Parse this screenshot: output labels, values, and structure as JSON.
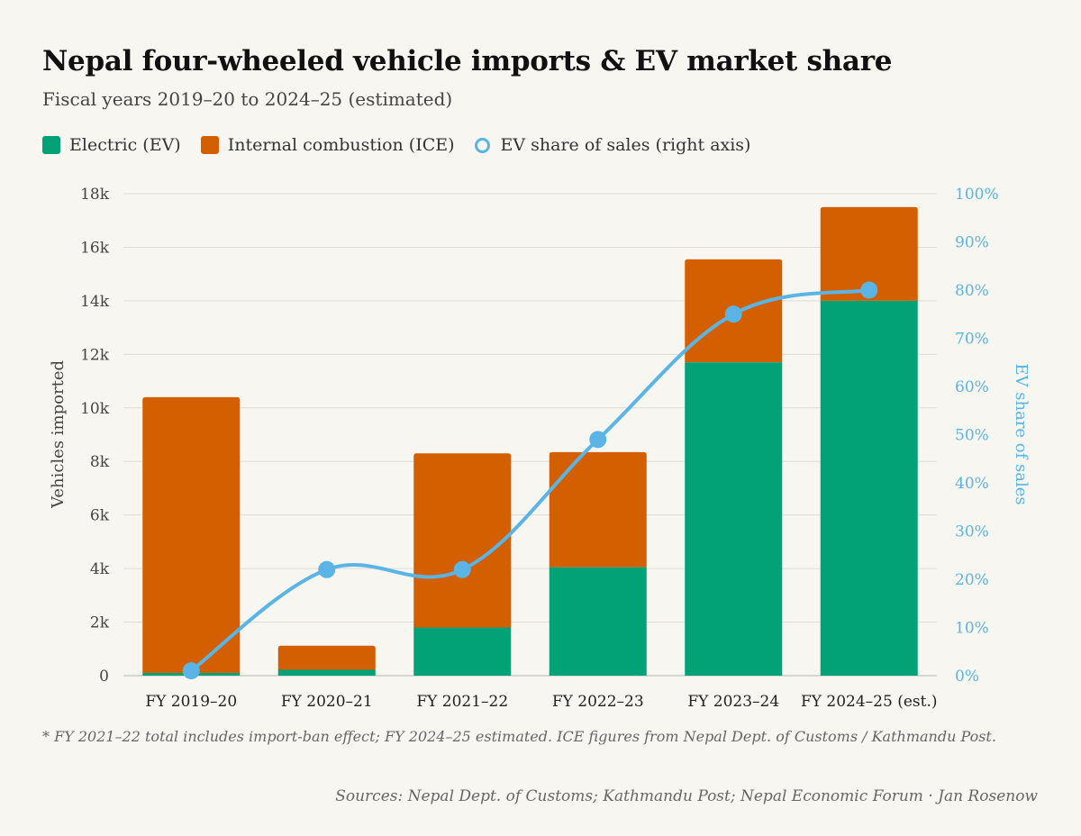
{
  "title": "Nepal four-wheeled vehicle imports & EV market share",
  "subtitle": "Fiscal years 2019–20 to 2024–25 (estimated)",
  "legend": {
    "ev": "Electric (EV)",
    "ice": "Internal combustion (ICE)",
    "share": "EV share of sales (right axis)"
  },
  "colors": {
    "ev": "#03a176",
    "ice": "#d45f00",
    "share": "#5ab4e5",
    "grid": "#dedcd5",
    "background": "#f7f6f1"
  },
  "note": "* FY 2021–22 total includes import-ban effect; FY 2024–25 estimated. ICE figures from Nepal Dept. of Customs / Kathmandu Post.",
  "source": "Sources: Nepal Dept. of Customs; Kathmandu Post; Nepal Economic Forum · Jan Rosenow",
  "chart_data": {
    "type": "bar",
    "stacked": true,
    "categories": [
      "FY 2019–20",
      "FY 2020–21",
      "FY 2021–22",
      "FY 2022–23",
      "FY 2023–24",
      "FY 2024–25 (est.)"
    ],
    "series": [
      {
        "name": "Electric (EV)",
        "axis": "left",
        "values": [
          100,
          220,
          1800,
          4050,
          11700,
          14000
        ]
      },
      {
        "name": "Internal combustion (ICE)",
        "axis": "left",
        "values": [
          10300,
          900,
          6500,
          4300,
          3850,
          3500
        ]
      },
      {
        "name": "EV share of sales (right axis)",
        "type": "line",
        "axis": "right",
        "values": [
          1,
          22,
          22,
          49,
          75,
          80
        ]
      }
    ],
    "ylabel": "Vehicles imported",
    "ylim": [
      0,
      18000
    ],
    "yticks": [
      0,
      2000,
      4000,
      6000,
      8000,
      10000,
      12000,
      14000,
      16000,
      18000
    ],
    "ytick_labels": [
      "0",
      "2k",
      "4k",
      "6k",
      "8k",
      "10k",
      "12k",
      "14k",
      "16k",
      "18k"
    ],
    "y2label": "EV share of sales",
    "y2lim": [
      0,
      100
    ],
    "y2ticks": [
      0,
      10,
      20,
      30,
      40,
      50,
      60,
      70,
      80,
      90,
      100
    ],
    "y2tick_labels": [
      "0%",
      "10%",
      "20%",
      "30%",
      "40%",
      "50%",
      "60%",
      "70%",
      "80%",
      "90%",
      "100%"
    ],
    "grid": true,
    "legend_position": "top-left"
  }
}
